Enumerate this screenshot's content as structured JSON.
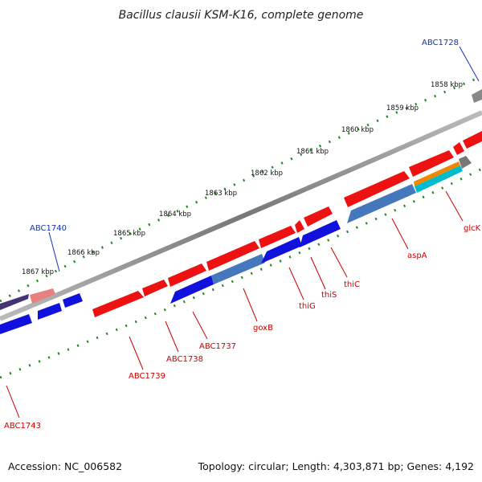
{
  "title": "Bacillus clausii KSM-K16, complete genome",
  "footer": {
    "accession": "Accession: NC_006582",
    "info": "Topology: circular; Length: 4,303,871 bp; Genes: 4,192"
  },
  "ticks": [
    "1858 kbp",
    "1859 kbp",
    "1860 kbp",
    "1861 kbp",
    "1862 kbp",
    "1863 kbp",
    "1864 kbp",
    "1865 kbp",
    "1866 kbp",
    "1867 kbp"
  ],
  "gene_labels": [
    {
      "text": "ABC1728",
      "color": "blue"
    },
    {
      "text": "ABC1740",
      "color": "blue"
    },
    {
      "text": "glcK",
      "color": "red"
    },
    {
      "text": "aspA",
      "color": "red"
    },
    {
      "text": "thiC",
      "color": "red"
    },
    {
      "text": "thiS",
      "color": "red"
    },
    {
      "text": "thiG",
      "color": "red"
    },
    {
      "text": "goxB",
      "color": "red"
    },
    {
      "text": "ABC1737",
      "color": "red"
    },
    {
      "text": "ABC1738",
      "color": "red"
    },
    {
      "text": "ABC1739",
      "color": "red"
    },
    {
      "text": "ABC1743",
      "color": "red"
    }
  ],
  "colors": {
    "forward_cds": "#ee1111",
    "reverse_cds": "#1111dd",
    "backbone": "#888888",
    "tick_marks": "#228822",
    "label_red": "#cc0000",
    "label_blue": "#1133bb"
  }
}
